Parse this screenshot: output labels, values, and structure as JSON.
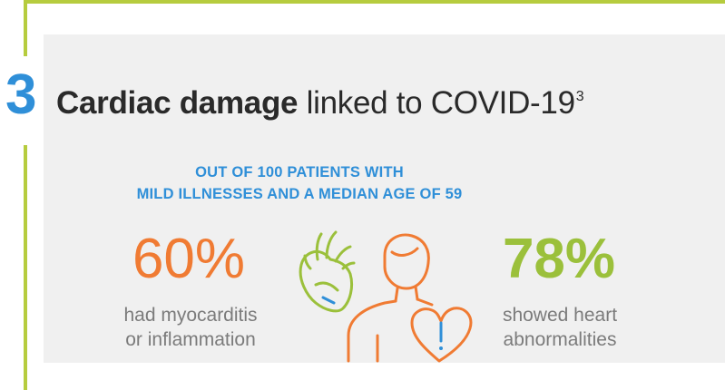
{
  "section": {
    "number": "3",
    "title_bold": "Cardiac damage",
    "title_rest": " linked to COVID-19",
    "title_superscript": "3"
  },
  "subheading": {
    "line1": "OUT OF 100 PATIENTS WITH",
    "line2": "MILD ILLNESSES AND A MEDIAN AGE OF 59"
  },
  "stats": {
    "left": {
      "value": "60%",
      "line1": "had myocarditis",
      "line2": "or inflammation"
    },
    "right": {
      "value": "78%",
      "line1": "showed heart",
      "line2": "abnormalities"
    }
  },
  "icons": [
    "heart-organ-icon",
    "person-icon",
    "heart-warning-icon"
  ],
  "colors": {
    "frame_green": "#b6cc3e",
    "accent_blue": "#2f8fd8",
    "stat_orange": "#f07b33",
    "stat_green": "#9bc03b",
    "text_gray": "#7b7b7b",
    "panel_gray": "#f0f0f0"
  }
}
